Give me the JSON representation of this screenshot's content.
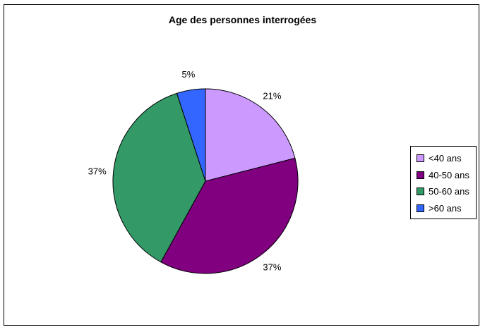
{
  "chart_data": {
    "type": "pie",
    "title": "Age des personnes interrogées",
    "categories": [
      "<40 ans",
      "40-50 ans",
      "50-60 ans",
      ">60 ans"
    ],
    "values": [
      21,
      37,
      37,
      5
    ],
    "data_labels": [
      "21%",
      "37%",
      "37%",
      "5%"
    ],
    "colors": [
      "#cc99ff",
      "#800080",
      "#339966",
      "#3366ff"
    ],
    "legend": "right",
    "start_angle_deg": 0,
    "direction": "clockwise"
  }
}
